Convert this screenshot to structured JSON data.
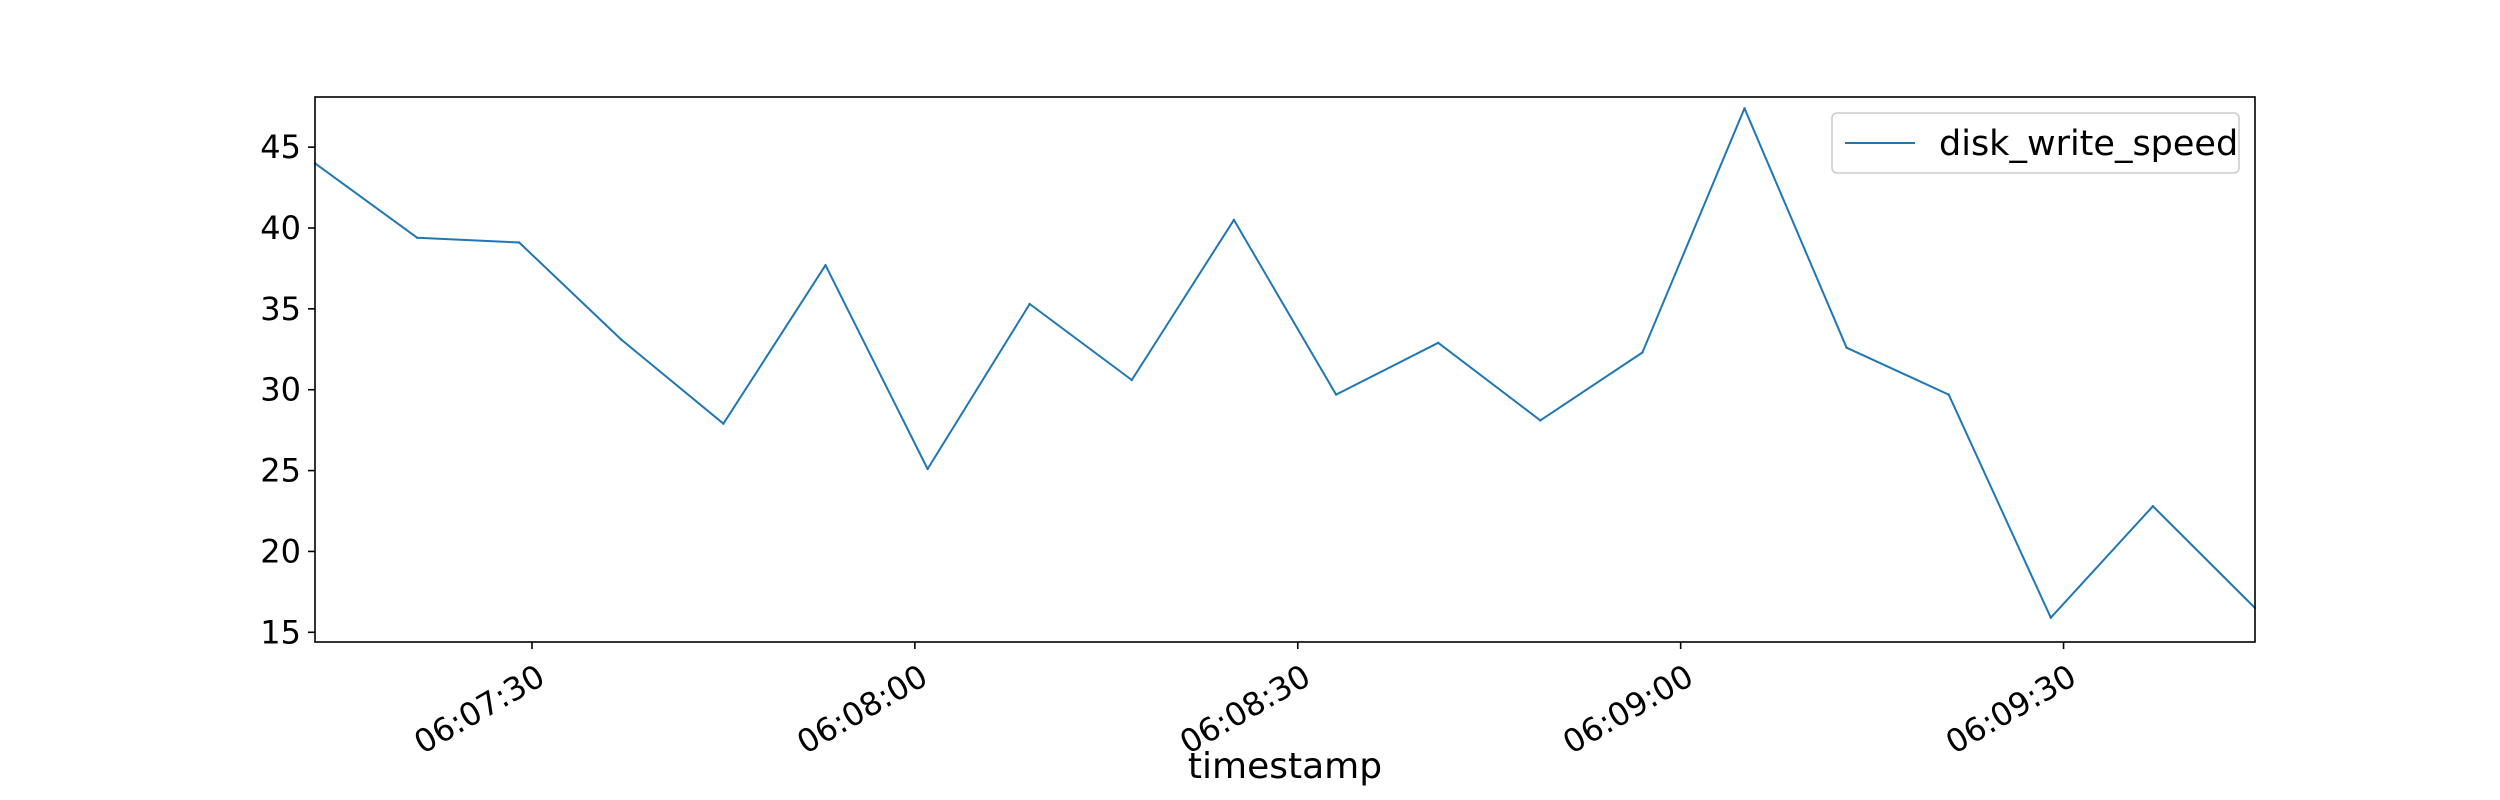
{
  "chart_data": {
    "type": "line",
    "xlabel": "timestamp",
    "ylabel": "",
    "x_ticks": [
      "06:07:30",
      "06:08:00",
      "06:08:30",
      "06:09:00",
      "06:09:30"
    ],
    "y_ticks": [
      15,
      20,
      25,
      30,
      35,
      40,
      45
    ],
    "xlim": [
      "06:07:13",
      "06:09:45"
    ],
    "ylim": [
      14.4,
      48.1
    ],
    "grid": false,
    "legend_position": "top-right",
    "series": [
      {
        "name": "disk_write_speed",
        "color": "#1f77b4",
        "x": [
          "06:07:13",
          "06:07:21",
          "06:07:29",
          "06:07:37",
          "06:07:45",
          "06:07:53",
          "06:08:01",
          "06:08:09",
          "06:08:17",
          "06:08:25",
          "06:08:33",
          "06:08:41",
          "06:08:49",
          "06:08:57",
          "06:09:05",
          "06:09:13",
          "06:09:21",
          "06:09:29",
          "06:09:37",
          "06:09:45"
        ],
        "values": [
          44.0,
          39.4,
          39.1,
          33.1,
          27.9,
          37.7,
          25.1,
          35.3,
          30.6,
          40.5,
          29.7,
          32.9,
          28.1,
          32.3,
          47.4,
          32.6,
          29.7,
          15.9,
          22.8,
          16.5
        ]
      }
    ]
  }
}
